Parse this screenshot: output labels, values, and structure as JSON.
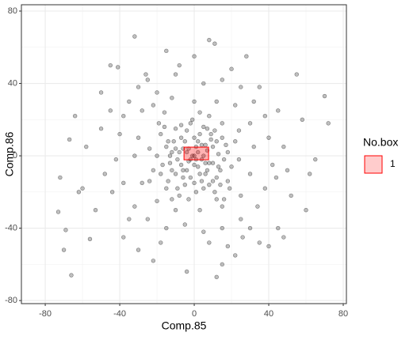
{
  "chart_data": {
    "type": "scatter",
    "x_label": "Comp.85",
    "y_label": "Comp.86",
    "xlim": [
      -92.8,
      81.7
    ],
    "ylim": [
      -81.7,
      83.5
    ],
    "xticks": [
      -80,
      -40,
      0,
      40,
      80
    ],
    "yticks": [
      -80,
      -40,
      0,
      40,
      80
    ],
    "xminor": [
      -60,
      -20,
      20,
      60
    ],
    "yminor": [
      -60,
      -20,
      20,
      60
    ],
    "grid": true,
    "color": "#000000",
    "alpha": 0.25,
    "legend_title": "No.box",
    "legend_position": "right",
    "box": {
      "xmin": -5.5,
      "xmax": 7.7,
      "ymin": -2.2,
      "ymax": 4.8,
      "label": "1",
      "fill": "#ff0000",
      "stroke": "#ff0000"
    },
    "points": [
      [
        -32,
        66
      ],
      [
        8,
        64
      ],
      [
        11,
        62
      ],
      [
        -70,
        -52
      ],
      [
        -66,
        -66
      ],
      [
        -73,
        -31
      ],
      [
        -69,
        -41
      ],
      [
        70,
        33
      ],
      [
        72,
        18
      ],
      [
        48,
        -45
      ],
      [
        -4,
        -64
      ],
      [
        12,
        -67
      ],
      [
        -56,
        -46
      ],
      [
        -62,
        -20
      ],
      [
        -60,
        -18
      ],
      [
        55,
        45
      ],
      [
        40,
        -50
      ],
      [
        22,
        -55
      ],
      [
        -22,
        -58
      ],
      [
        -45,
        50
      ],
      [
        -41,
        49
      ],
      [
        -64,
        22
      ],
      [
        -67,
        9
      ],
      [
        -72,
        -12
      ],
      [
        62,
        -10
      ],
      [
        65,
        -2
      ],
      [
        58,
        20
      ],
      [
        -50,
        35
      ],
      [
        -53,
        -30
      ],
      [
        35,
        -48
      ],
      [
        -30,
        -52
      ],
      [
        28,
        55
      ],
      [
        -15,
        58
      ],
      [
        0,
        55
      ],
      [
        45,
        -40
      ],
      [
        60,
        -30
      ],
      [
        -58,
        5
      ],
      [
        52,
        -22
      ],
      [
        -38,
        -45
      ],
      [
        15,
        -60
      ],
      [
        -35,
        30
      ],
      [
        -30,
        38
      ],
      [
        -25,
        42
      ],
      [
        -20,
        35
      ],
      [
        -10,
        45
      ],
      [
        5,
        40
      ],
      [
        15,
        42
      ],
      [
        25,
        38
      ],
      [
        32,
        30
      ],
      [
        38,
        22
      ],
      [
        40,
        10
      ],
      [
        42,
        -5
      ],
      [
        38,
        -18
      ],
      [
        34,
        -28
      ],
      [
        25,
        -35
      ],
      [
        15,
        -40
      ],
      [
        5,
        -42
      ],
      [
        -5,
        -38
      ],
      [
        -15,
        -40
      ],
      [
        -25,
        -35
      ],
      [
        -32,
        -28
      ],
      [
        -38,
        -15
      ],
      [
        -42,
        -2
      ],
      [
        -40,
        12
      ],
      [
        -38,
        22
      ],
      [
        -28,
        25
      ],
      [
        -22,
        28
      ],
      [
        -12,
        32
      ],
      [
        0,
        30
      ],
      [
        12,
        30
      ],
      [
        22,
        28
      ],
      [
        30,
        18
      ],
      [
        32,
        5
      ],
      [
        30,
        -10
      ],
      [
        25,
        -22
      ],
      [
        15,
        -28
      ],
      [
        3,
        -30
      ],
      [
        -10,
        -30
      ],
      [
        -20,
        -25
      ],
      [
        -28,
        -15
      ],
      [
        -32,
        0
      ],
      [
        -30,
        10
      ],
      [
        -45,
        25
      ],
      [
        45,
        25
      ],
      [
        -48,
        -10
      ],
      [
        48,
        5
      ],
      [
        20,
        48
      ],
      [
        -18,
        -48
      ],
      [
        30,
        -40
      ],
      [
        -35,
        -35
      ],
      [
        35,
        38
      ],
      [
        -8,
        50
      ],
      [
        8,
        -48
      ],
      [
        44,
        -12
      ],
      [
        -44,
        -20
      ],
      [
        26,
        -45
      ],
      [
        -26,
        45
      ],
      [
        50,
        -8
      ],
      [
        -50,
        15
      ],
      [
        18,
        -50
      ],
      [
        -18,
        12
      ],
      [
        -15,
        5
      ],
      [
        -12,
        -8
      ],
      [
        -10,
        15
      ],
      [
        -8,
        2
      ],
      [
        -6,
        -12
      ],
      [
        -5,
        8
      ],
      [
        -3,
        -3
      ],
      [
        -2,
        18
      ],
      [
        0,
        -15
      ],
      [
        1,
        5
      ],
      [
        2,
        -6
      ],
      [
        3,
        12
      ],
      [
        4,
        -2
      ],
      [
        5,
        16
      ],
      [
        6,
        -10
      ],
      [
        7,
        3
      ],
      [
        8,
        -16
      ],
      [
        9,
        9
      ],
      [
        10,
        -4
      ],
      [
        11,
        14
      ],
      [
        12,
        -12
      ],
      [
        13,
        1
      ],
      [
        14,
        -8
      ],
      [
        15,
        10
      ],
      [
        16,
        -2
      ],
      [
        17,
        6
      ],
      [
        18,
        -14
      ],
      [
        -17,
        -5
      ],
      [
        -16,
        16
      ],
      [
        -14,
        -14
      ],
      [
        -13,
        0
      ],
      [
        -11,
        8
      ],
      [
        -9,
        -18
      ],
      [
        -7,
        10
      ],
      [
        -4,
        -8
      ],
      [
        -1,
        0
      ],
      [
        0,
        10
      ],
      [
        2,
        2
      ],
      [
        3,
        -10
      ],
      [
        5,
        0
      ],
      [
        6,
        6
      ],
      [
        8,
        -4
      ],
      [
        9,
        12
      ],
      [
        -2,
        -12
      ],
      [
        -6,
        4
      ],
      [
        -9,
        -2
      ],
      [
        -12,
        2
      ],
      [
        -4,
        14
      ],
      [
        4,
        6
      ],
      [
        1,
        -2
      ],
      [
        -3,
        4
      ],
      [
        0,
        -5
      ],
      [
        7,
        -8
      ],
      [
        -7,
        -5
      ],
      [
        10,
        5
      ],
      [
        -10,
        -10
      ],
      [
        12,
        8
      ],
      [
        -14,
        8
      ],
      [
        14,
        -16
      ],
      [
        -18,
        -10
      ],
      [
        18,
        2
      ],
      [
        -20,
        0
      ],
      [
        20,
        -6
      ],
      [
        -1,
        20
      ],
      [
        1,
        -20
      ],
      [
        -5,
        -16
      ],
      [
        5,
        -18
      ],
      [
        -15,
        -18
      ],
      [
        15,
        18
      ],
      [
        -19,
        18
      ],
      [
        19,
        -18
      ],
      [
        -8,
        -22
      ],
      [
        8,
        22
      ],
      [
        -22,
        -8
      ],
      [
        22,
        8
      ],
      [
        -24,
        4
      ],
      [
        24,
        -2
      ],
      [
        -3,
        -24
      ],
      [
        3,
        24
      ],
      [
        -12,
        -24
      ],
      [
        12,
        -24
      ],
      [
        -24,
        -14
      ],
      [
        24,
        14
      ],
      [
        -16,
        24
      ],
      [
        16,
        -24
      ],
      [
        0,
        0
      ],
      [
        2,
        8
      ],
      [
        -2,
        -2
      ],
      [
        6,
        -4
      ],
      [
        -6,
        -8
      ],
      [
        4,
        -14
      ],
      [
        -4,
        2
      ],
      [
        10,
        -14
      ],
      [
        -10,
        4
      ],
      [
        13,
        -6
      ],
      [
        -13,
        -4
      ],
      [
        7,
        15
      ],
      [
        -7,
        17
      ],
      [
        11,
        -20
      ]
    ]
  }
}
